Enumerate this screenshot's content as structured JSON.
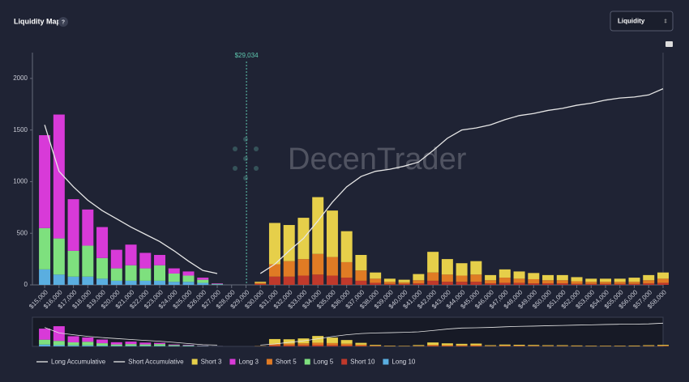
{
  "header": {
    "title": "Liquidity Map",
    "help": "?",
    "dropdown": "Liquidity"
  },
  "watermark": "DecenTrader",
  "chart_data": {
    "type": "bar",
    "x": [
      15000,
      16000,
      17000,
      18000,
      19000,
      20000,
      21000,
      22000,
      23000,
      24000,
      25000,
      26000,
      27000,
      28000,
      29000,
      30000,
      31000,
      32000,
      33000,
      34000,
      35000,
      36000,
      37000,
      38000,
      39000,
      40000,
      41000,
      42000,
      43000,
      44000,
      45000,
      46000,
      47000,
      48000,
      49000,
      50000,
      51000,
      52000,
      53000,
      54000,
      55000,
      56000,
      57000,
      58000
    ],
    "current_price": {
      "value": 29034,
      "label": "$29,034"
    },
    "xlim": [
      14150,
      58000
    ],
    "xticks": [
      {
        "value": 15000,
        "label": "$15,000"
      },
      {
        "value": 16000,
        "label": "$16,000"
      },
      {
        "value": 17000,
        "label": "$17,000"
      },
      {
        "value": 18000,
        "label": "$18,000"
      },
      {
        "value": 19000,
        "label": "$19,000"
      },
      {
        "value": 20000,
        "label": "$20,000"
      },
      {
        "value": 21000,
        "label": "$21,000"
      },
      {
        "value": 22000,
        "label": "$22,000"
      },
      {
        "value": 23000,
        "label": "$23,000"
      },
      {
        "value": 24000,
        "label": "$24,000"
      },
      {
        "value": 25000,
        "label": "$25,000"
      },
      {
        "value": 26000,
        "label": "$26,000"
      },
      {
        "value": 27000,
        "label": "$27,000"
      },
      {
        "value": 28000,
        "label": "$28,000"
      },
      {
        "value": 29000,
        "label": "$29,000"
      },
      {
        "value": 30000,
        "label": "$30,000"
      },
      {
        "value": 31000,
        "label": "$31,000"
      },
      {
        "value": 32000,
        "label": "$32,000"
      },
      {
        "value": 33000,
        "label": "$33,000"
      },
      {
        "value": 34000,
        "label": "$34,000"
      },
      {
        "value": 35000,
        "label": "$35,000"
      },
      {
        "value": 36000,
        "label": "$36,000"
      },
      {
        "value": 37000,
        "label": "$37,000"
      },
      {
        "value": 38000,
        "label": "$38,000"
      },
      {
        "value": 39000,
        "label": "$39,000"
      },
      {
        "value": 40000,
        "label": "$40,000"
      },
      {
        "value": 41000,
        "label": "$41,000"
      },
      {
        "value": 42000,
        "label": "$42,000"
      },
      {
        "value": 43000,
        "label": "$43,000"
      },
      {
        "value": 44000,
        "label": "$44,000"
      },
      {
        "value": 45000,
        "label": "$45,000"
      },
      {
        "value": 46000,
        "label": "$46,000"
      },
      {
        "value": 47000,
        "label": "$47,000"
      },
      {
        "value": 48000,
        "label": "$48,000"
      },
      {
        "value": 49000,
        "label": "$49,000"
      },
      {
        "value": 50000,
        "label": "$50,000"
      },
      {
        "value": 51000,
        "label": "$51,000"
      },
      {
        "value": 52000,
        "label": "$52,000"
      },
      {
        "value": 53000,
        "label": "$53,000"
      },
      {
        "value": 54000,
        "label": "$54,000"
      },
      {
        "value": 55000,
        "label": "$55,000"
      },
      {
        "value": 56000,
        "label": "$56,000"
      },
      {
        "value": 57000,
        "label": "$57,000"
      },
      {
        "value": 58000,
        "label": "$58,000"
      }
    ],
    "ylim": [
      0,
      2250
    ],
    "yticks": [
      0,
      500,
      1000,
      1500,
      2000
    ],
    "grid": false,
    "series": [
      {
        "name": "Long Accumulative",
        "type": "line",
        "color": "#e6e6e6",
        "values": [
          1550,
          1100,
          950,
          820,
          720,
          640,
          560,
          490,
          420,
          330,
          230,
          140,
          110,
          null,
          null,
          null,
          null,
          null,
          null,
          null,
          null,
          null,
          null,
          null,
          null,
          null,
          null,
          null,
          null,
          null,
          null,
          null,
          null,
          null,
          null,
          null,
          null,
          null,
          null,
          null,
          null,
          null,
          null,
          null
        ]
      },
      {
        "name": "Short Accumulative",
        "type": "line",
        "color": "#e6e6e6",
        "values": [
          null,
          null,
          null,
          null,
          null,
          null,
          null,
          null,
          null,
          null,
          null,
          null,
          null,
          null,
          null,
          110,
          200,
          330,
          450,
          620,
          800,
          950,
          1050,
          1100,
          1120,
          1150,
          1190,
          1300,
          1420,
          1500,
          1520,
          1550,
          1600,
          1640,
          1660,
          1690,
          1710,
          1740,
          1760,
          1790,
          1810,
          1820,
          1840,
          1900
        ]
      },
      {
        "name": "Short 3",
        "type": "bar",
        "color": "#e6cf4a",
        "values": [
          null,
          null,
          null,
          null,
          null,
          null,
          null,
          null,
          null,
          null,
          null,
          null,
          null,
          null,
          null,
          10,
          400,
          350,
          400,
          550,
          450,
          300,
          150,
          60,
          30,
          25,
          60,
          200,
          150,
          120,
          130,
          50,
          80,
          70,
          60,
          50,
          50,
          40,
          30,
          30,
          30,
          40,
          50,
          60
        ]
      },
      {
        "name": "Long 3",
        "type": "bar",
        "color": "#d83ad8",
        "values": [
          900,
          1200,
          500,
          350,
          300,
          180,
          200,
          150,
          100,
          50,
          40,
          20,
          5,
          null,
          null,
          null,
          null,
          null,
          null,
          null,
          null,
          null,
          null,
          null,
          null,
          null,
          null,
          null,
          null,
          null,
          null,
          null,
          null,
          null,
          null,
          null,
          null,
          null,
          null,
          null,
          null,
          null,
          null,
          null
        ]
      },
      {
        "name": "Short 5",
        "type": "bar",
        "color": "#e07b24",
        "values": [
          null,
          null,
          null,
          null,
          null,
          null,
          null,
          null,
          null,
          null,
          null,
          null,
          null,
          null,
          null,
          10,
          120,
          150,
          160,
          200,
          180,
          150,
          100,
          40,
          20,
          15,
          30,
          80,
          70,
          60,
          70,
          30,
          50,
          40,
          40,
          30,
          30,
          25,
          20,
          20,
          20,
          20,
          30,
          40
        ]
      },
      {
        "name": "Long 5",
        "type": "bar",
        "color": "#7ee07e",
        "values": [
          400,
          350,
          250,
          300,
          200,
          120,
          150,
          120,
          150,
          80,
          60,
          30,
          5,
          null,
          null,
          null,
          null,
          null,
          null,
          null,
          null,
          null,
          null,
          null,
          null,
          null,
          null,
          null,
          null,
          null,
          null,
          null,
          null,
          null,
          null,
          null,
          null,
          null,
          null,
          null,
          null,
          null,
          null,
          null
        ]
      },
      {
        "name": "Short 10",
        "type": "bar",
        "color": "#c0392b",
        "values": [
          null,
          null,
          null,
          null,
          null,
          null,
          null,
          null,
          null,
          null,
          null,
          null,
          null,
          null,
          null,
          10,
          80,
          80,
          90,
          100,
          90,
          70,
          40,
          20,
          10,
          10,
          15,
          40,
          30,
          30,
          30,
          15,
          20,
          20,
          15,
          15,
          15,
          10,
          10,
          10,
          10,
          10,
          15,
          20
        ]
      },
      {
        "name": "Long 10",
        "type": "bar",
        "color": "#5aaee0",
        "values": [
          150,
          100,
          80,
          80,
          60,
          40,
          40,
          40,
          40,
          30,
          30,
          20,
          5,
          null,
          null,
          null,
          null,
          null,
          null,
          null,
          null,
          null,
          null,
          null,
          null,
          null,
          null,
          null,
          null,
          null,
          null,
          null,
          null,
          null,
          null,
          null,
          null,
          null,
          null,
          null,
          null,
          null,
          null,
          null
        ]
      }
    ]
  }
}
